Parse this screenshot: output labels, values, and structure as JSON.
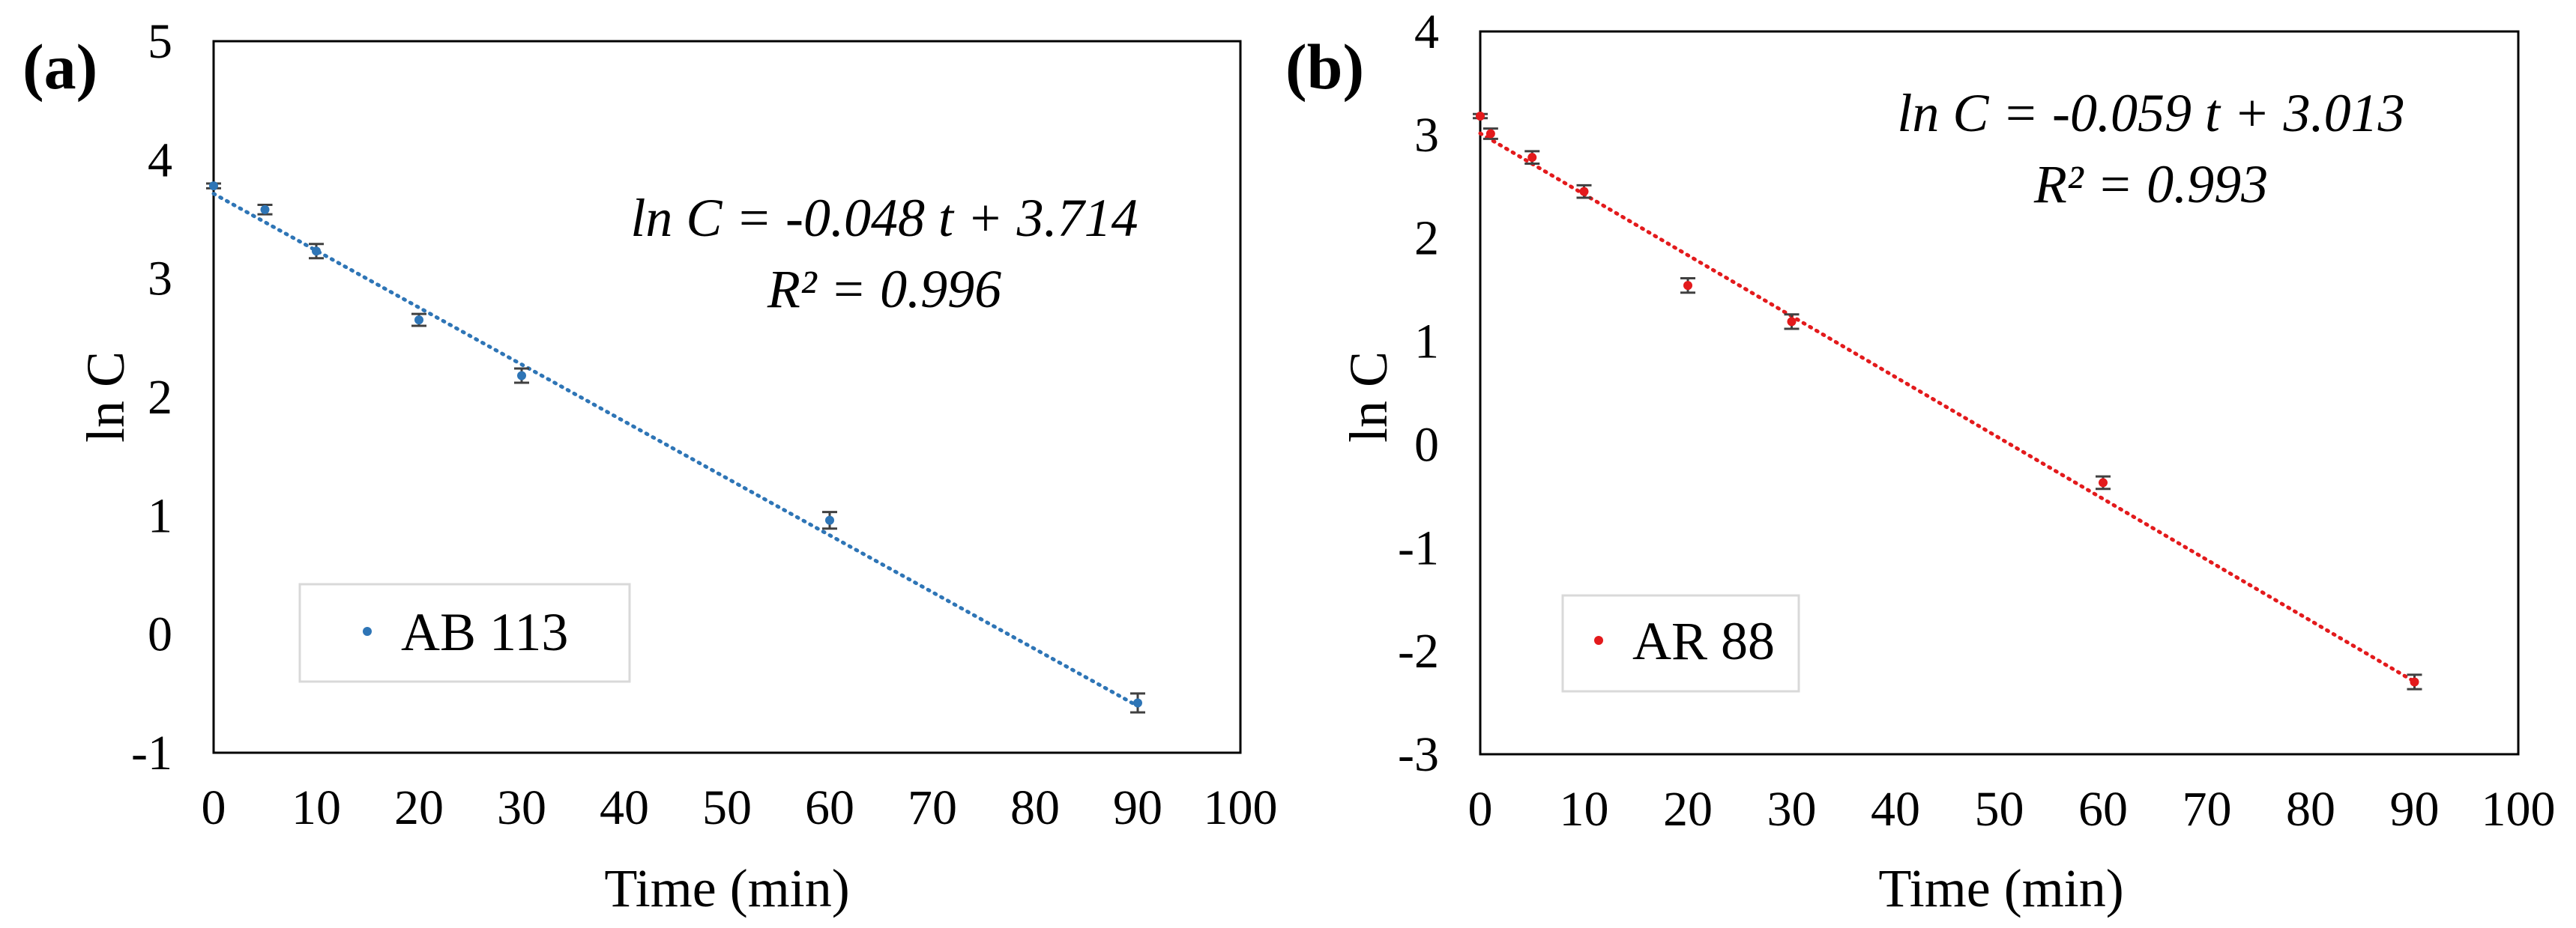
{
  "chart_data": [
    {
      "type": "scatter",
      "panel_label": "(a)",
      "xlabel": "Time (min)",
      "ylabel": "ln C",
      "xlim": [
        0,
        100
      ],
      "ylim": [
        -1,
        5
      ],
      "xticks": [
        "0",
        "10",
        "20",
        "30",
        "40",
        "50",
        "60",
        "70",
        "80",
        "90",
        "100"
      ],
      "yticks": [
        "-1",
        "0",
        "1",
        "2",
        "3",
        "4",
        "5"
      ],
      "grid": false,
      "legend": {
        "position": "bottom-left",
        "label": "AB 113"
      },
      "series": [
        {
          "name": "AB 113",
          "color": "#2E75B6",
          "x": [
            0,
            5,
            10,
            20,
            30,
            60,
            90
          ],
          "y": [
            3.78,
            3.58,
            3.23,
            2.65,
            2.18,
            0.96,
            -0.58
          ],
          "yerr": [
            0.02,
            0.04,
            0.06,
            0.05,
            0.06,
            0.07,
            0.08
          ]
        }
      ],
      "trendline": {
        "type": "linear",
        "slope": -0.048,
        "intercept": 3.714,
        "x_range": [
          0,
          90
        ],
        "style": "dotted",
        "equation": "ln C = -0.048 t + 3.714",
        "r2": "R² = 0.996"
      }
    },
    {
      "type": "scatter",
      "panel_label": "(b)",
      "xlabel": "Time (min)",
      "ylabel": "ln C",
      "xlim": [
        0,
        100
      ],
      "ylim": [
        -3,
        4
      ],
      "xticks": [
        "0",
        "10",
        "20",
        "30",
        "40",
        "50",
        "60",
        "70",
        "80",
        "90",
        "100"
      ],
      "yticks": [
        "-3",
        "-2",
        "-1",
        "0",
        "1",
        "2",
        "3",
        "4"
      ],
      "grid": false,
      "legend": {
        "position": "bottom-left",
        "label": "AR 88"
      },
      "series": [
        {
          "name": "AR 88",
          "color": "#E31A1C",
          "x": [
            0,
            1,
            5,
            10,
            20,
            30,
            60,
            90
          ],
          "y": [
            3.18,
            3.01,
            2.78,
            2.45,
            1.54,
            1.19,
            -0.37,
            -2.3
          ],
          "yerr": [
            0.02,
            0.05,
            0.06,
            0.06,
            0.07,
            0.07,
            0.06,
            0.07
          ]
        }
      ],
      "trendline": {
        "type": "linear",
        "slope": -0.059,
        "intercept": 3.013,
        "x_range": [
          0,
          90
        ],
        "style": "dotted",
        "equation": "ln C = -0.059 t + 3.013",
        "r2": "R² = 0.993"
      }
    }
  ]
}
